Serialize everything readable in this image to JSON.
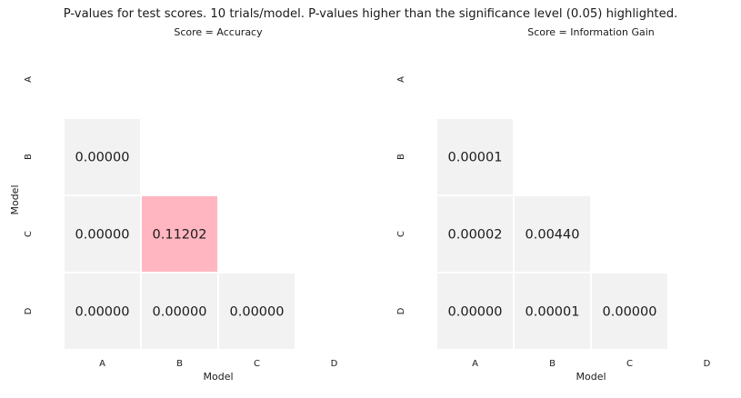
{
  "title": "P-values for test scores. 10 trials/model. P-values higher than the significance level (0.05) highlighted.",
  "colors": {
    "cell": "#f2f2f2",
    "highlight": "#ffb6c1",
    "text": "#1a1a1a",
    "border": "#ffffff"
  },
  "chart_data": [
    {
      "type": "heatmap",
      "subtitle": "Score = Accuracy",
      "xlabel": "Model",
      "ylabel": "Model",
      "x_categories": [
        "A",
        "B",
        "C",
        "D"
      ],
      "y_categories": [
        "A",
        "B",
        "C",
        "D"
      ],
      "significance_level": 0.05,
      "cells": [
        {
          "row": "B",
          "col": "A",
          "value": "0.00000",
          "highlighted": false
        },
        {
          "row": "C",
          "col": "A",
          "value": "0.00000",
          "highlighted": false
        },
        {
          "row": "C",
          "col": "B",
          "value": "0.11202",
          "highlighted": true
        },
        {
          "row": "D",
          "col": "A",
          "value": "0.00000",
          "highlighted": false
        },
        {
          "row": "D",
          "col": "B",
          "value": "0.00000",
          "highlighted": false
        },
        {
          "row": "D",
          "col": "C",
          "value": "0.00000",
          "highlighted": false
        }
      ]
    },
    {
      "type": "heatmap",
      "subtitle": "Score = Information Gain",
      "xlabel": "Model",
      "ylabel": "",
      "x_categories": [
        "A",
        "B",
        "C",
        "D"
      ],
      "y_categories": [
        "A",
        "B",
        "C",
        "D"
      ],
      "significance_level": 0.05,
      "cells": [
        {
          "row": "B",
          "col": "A",
          "value": "0.00001",
          "highlighted": false
        },
        {
          "row": "C",
          "col": "A",
          "value": "0.00002",
          "highlighted": false
        },
        {
          "row": "C",
          "col": "B",
          "value": "0.00440",
          "highlighted": false
        },
        {
          "row": "D",
          "col": "A",
          "value": "0.00000",
          "highlighted": false
        },
        {
          "row": "D",
          "col": "B",
          "value": "0.00001",
          "highlighted": false
        },
        {
          "row": "D",
          "col": "C",
          "value": "0.00000",
          "highlighted": false
        }
      ]
    }
  ]
}
